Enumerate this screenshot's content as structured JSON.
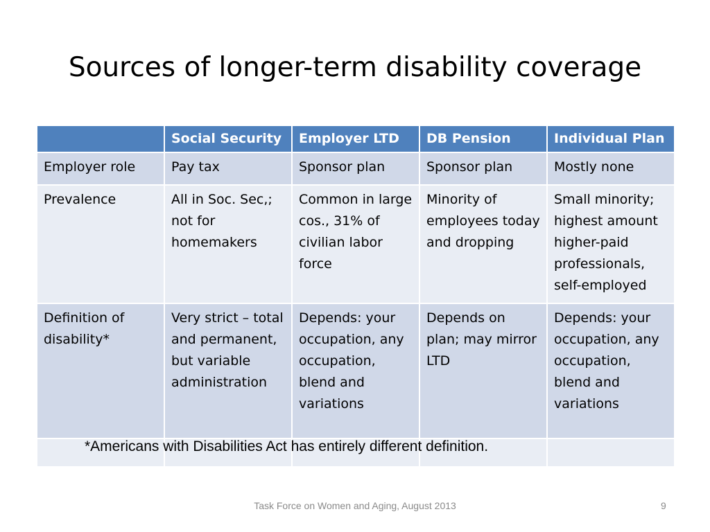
{
  "title": "Sources of longer-term disability coverage",
  "table": {
    "headers": [
      "",
      "Social Security",
      "Employer LTD",
      "DB Pension",
      "Individual Plan"
    ],
    "rows": [
      [
        "Employer role",
        "Pay tax",
        "Sponsor plan",
        "Sponsor plan",
        "Mostly none"
      ],
      [
        "Prevalence",
        "All in Soc. Sec,; not for homemakers",
        "Common in large cos., 31% of civilian labor force",
        "Minority of employees today and dropping",
        "Small minority; highest amount higher-paid professionals, self-employed"
      ],
      [
        "Definition of disability*",
        "Very strict – total and permanent, but variable administration",
        "Depends: your occupation, any occupation, blend and variations",
        "Depends on plan; may mirror LTD",
        "Depends: your occupation, any occupation, blend and variations"
      ],
      [
        "",
        "",
        "",
        "",
        ""
      ]
    ]
  },
  "footnote": "*Americans with Disabilities Act has entirely different definition.",
  "footer": {
    "text": "Task Force on Women and Aging, August 2013",
    "page_number": "9"
  }
}
